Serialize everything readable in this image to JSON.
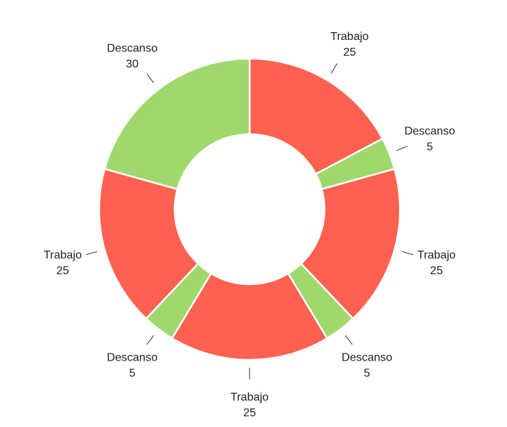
{
  "chart_data": {
    "type": "pie",
    "donut": true,
    "title": "",
    "slices": [
      {
        "label": "Trabajo",
        "value": 25,
        "color": "#ff6150"
      },
      {
        "label": "Descanso",
        "value": 5,
        "color": "#a0d86e"
      },
      {
        "label": "Trabajo",
        "value": 25,
        "color": "#ff6150"
      },
      {
        "label": "Descanso",
        "value": 5,
        "color": "#a0d86e"
      },
      {
        "label": "Trabajo",
        "value": 25,
        "color": "#ff6150"
      },
      {
        "label": "Descanso",
        "value": 5,
        "color": "#a0d86e"
      },
      {
        "label": "Trabajo",
        "value": 25,
        "color": "#ff6150"
      },
      {
        "label": "Descanso",
        "value": 30,
        "color": "#a0d86e"
      }
    ],
    "start_angle_deg": 0,
    "direction": "clockwise",
    "legend": "none"
  }
}
